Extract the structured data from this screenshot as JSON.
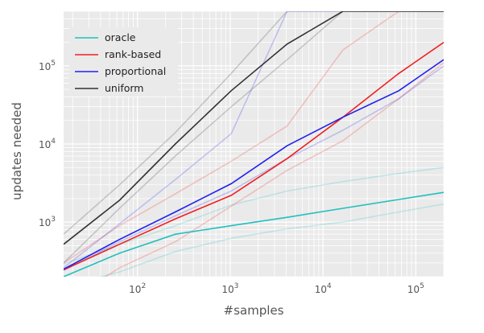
{
  "chart_data": {
    "type": "line",
    "title": "",
    "xlabel": "#samples",
    "ylabel": "updates needed",
    "xscale": "log",
    "yscale": "log",
    "xlim": [
      16,
      200000
    ],
    "ylim": [
      200,
      500000
    ],
    "grid": true,
    "legend_position": "top-left",
    "x_ticks": [
      {
        "value": 100,
        "base": "10",
        "exp": "2"
      },
      {
        "value": 1000,
        "base": "10",
        "exp": "3"
      },
      {
        "value": 10000,
        "base": "10",
        "exp": "4"
      },
      {
        "value": 100000,
        "base": "10",
        "exp": "5"
      }
    ],
    "y_ticks": [
      {
        "value": 1000,
        "base": "10",
        "exp": "3"
      },
      {
        "value": 10000,
        "base": "10",
        "exp": "4"
      },
      {
        "value": 100000,
        "base": "10",
        "exp": "5"
      }
    ],
    "series": [
      {
        "name": "oracle",
        "color": "#22bfbf",
        "x": [
          16,
          64,
          256,
          1024,
          4096,
          16384,
          65536,
          200000
        ],
        "y": [
          200,
          400,
          700,
          900,
          1150,
          1500,
          1950,
          2400
        ],
        "bands": [
          {
            "x": [
              16,
              64,
              256,
              1024,
              4096,
              16384,
              65536,
              200000
            ],
            "y": [
              290,
              520,
              900,
              1650,
              2500,
              3300,
              4200,
              5000
            ]
          },
          {
            "x": [
              16,
              64,
              256,
              1024,
              4096,
              16384,
              65536,
              200000
            ],
            "y": [
              150,
              230,
              420,
              620,
              820,
              1000,
              1350,
              1700
            ]
          }
        ]
      },
      {
        "name": "rank-based",
        "color": "#f02020",
        "x": [
          16,
          64,
          256,
          1024,
          4096,
          16384,
          65536,
          200000
        ],
        "y": [
          245,
          520,
          1100,
          2200,
          6500,
          22000,
          80000,
          200000
        ],
        "bands": [
          {
            "x": [
              16,
              64,
              256,
              1024,
              4096,
              16384,
              65536,
              200000
            ],
            "y": [
              300,
              900,
              2300,
              6000,
              17000,
              160000,
              500000,
              500000
            ]
          },
          {
            "x": [
              16,
              64,
              256,
              1024,
              4096,
              16384,
              65536,
              200000
            ],
            "y": [
              90,
              260,
              560,
              1600,
              4600,
              11000,
              38000,
              110000
            ]
          }
        ]
      },
      {
        "name": "proportional",
        "color": "#2020f0",
        "x": [
          16,
          64,
          256,
          1024,
          4096,
          16384,
          65536,
          200000
        ],
        "y": [
          250,
          600,
          1350,
          3100,
          9500,
          22000,
          48000,
          120000
        ],
        "bands": [
          {
            "x": [
              16,
              64,
              256,
              1024,
              4096,
              16384,
              65536,
              200000
            ],
            "y": [
              260,
              950,
              3500,
              13500,
              500000,
              500000,
              500000,
              500000
            ]
          },
          {
            "x": [
              16,
              64,
              256,
              1024,
              4096,
              16384,
              65536,
              200000
            ],
            "y": [
              240,
              560,
              1200,
              2500,
              6500,
              15000,
              38000,
              100000
            ]
          }
        ]
      },
      {
        "name": "uniform",
        "color": "#333333",
        "x": [
          16,
          64,
          256,
          1024,
          4096,
          16384,
          65536,
          200000
        ],
        "y": [
          520,
          1900,
          10000,
          48000,
          190000,
          500000,
          500000,
          500000
        ],
        "bands": [
          {
            "x": [
              16,
              64,
              256,
              1024,
              4096,
              16384,
              65536,
              200000
            ],
            "y": [
              700,
              3000,
              14000,
              80000,
              500000,
              500000,
              500000,
              500000
            ]
          },
          {
            "x": [
              16,
              64,
              256,
              1024,
              4096,
              16384,
              65536,
              200000
            ],
            "y": [
              300,
              1500,
              7000,
              30000,
              120000,
              500000,
              500000,
              500000
            ]
          }
        ]
      }
    ]
  }
}
